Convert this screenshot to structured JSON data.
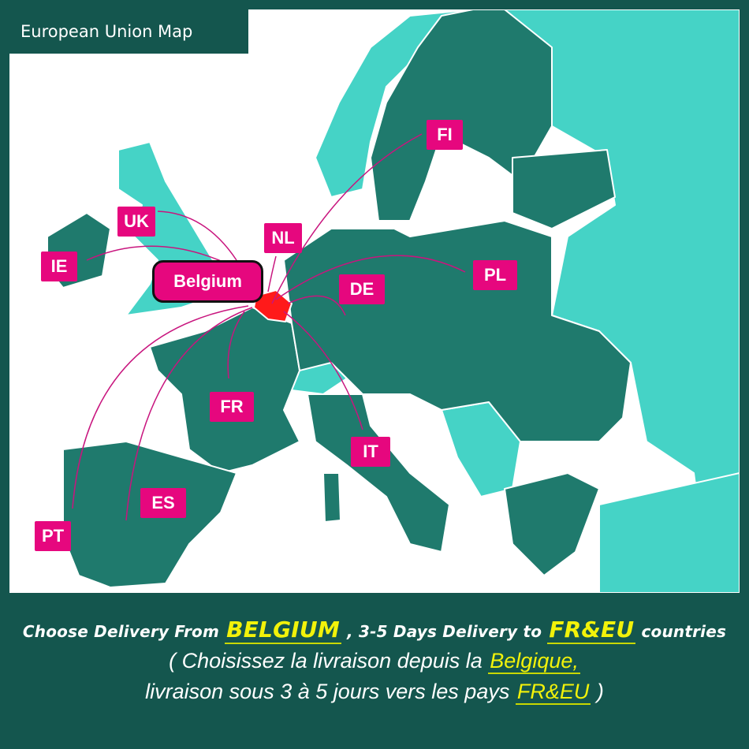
{
  "title": "European Union Map",
  "origin_label": "Belgium",
  "destinations": [
    {
      "code": "FI"
    },
    {
      "code": "UK"
    },
    {
      "code": "NL"
    },
    {
      "code": "IE"
    },
    {
      "code": "PL"
    },
    {
      "code": "DE"
    },
    {
      "code": "FR"
    },
    {
      "code": "IT"
    },
    {
      "code": "ES"
    },
    {
      "code": "PT"
    }
  ],
  "footer": {
    "line1_pre": "Choose Delivery From ",
    "line1_hl1": "BELGIUM",
    "line1_mid": " , 3-5 Days Delivery  to ",
    "line1_hl2": "FR&EU",
    "line1_post": " countries",
    "line2_pre": "( Choisissez la livraison depuis la ",
    "line2_hl": "Belgique,",
    "line3_pre": "livraison sous 3 à 5 jours vers les pays ",
    "line3_hl": "FR&EU",
    "line3_post": " )"
  },
  "colors": {
    "eu": "#1f7a6d",
    "non_eu": "#45d3c6",
    "origin": "#ff1a1a",
    "tag": "#e6077e",
    "frame": "#14564e",
    "highlight": "#f2f20a"
  }
}
